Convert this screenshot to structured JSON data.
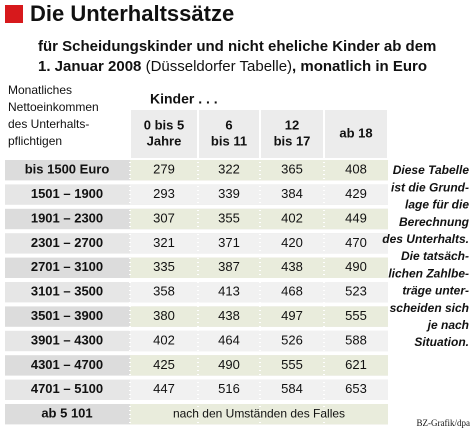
{
  "header": {
    "title": "Die Unterhaltssätze",
    "subtitle": [
      [
        "für Scheidungskinder und nicht eheliche Kinder ab dem"
      ],
      [
        "1. Januar 2008 ",
        "(Düsseldorfer Tabelle)",
        ", monatlich in Euro"
      ]
    ]
  },
  "table": {
    "corner": [
      "Monatliches",
      "Nettoeinkommen",
      "des Unterhalts-",
      "pflichtigen"
    ],
    "group_header": "Kinder . . .",
    "columns": [
      [
        "0 bis 5",
        "Jahre"
      ],
      [
        "6",
        "bis 11"
      ],
      [
        "12",
        "bis 17"
      ],
      [
        "ab 18"
      ]
    ],
    "rows": [
      [
        "bis 1500 Euro",
        "279",
        "322",
        "365",
        "408"
      ],
      [
        "1501 – 1900",
        "293",
        "339",
        "384",
        "429"
      ],
      [
        "1901 – 2300",
        "307",
        "355",
        "402",
        "449"
      ],
      [
        "2301 – 2700",
        "321",
        "371",
        "420",
        "470"
      ],
      [
        "2701 – 3100",
        "335",
        "387",
        "438",
        "490"
      ],
      [
        "3101 – 3500",
        "358",
        "413",
        "468",
        "523"
      ],
      [
        "3501 – 3900",
        "380",
        "438",
        "497",
        "555"
      ],
      [
        "3901 – 4300",
        "402",
        "464",
        "526",
        "588"
      ],
      [
        "4301 – 4700",
        "425",
        "490",
        "555",
        "621"
      ],
      [
        "4701 – 5100",
        "447",
        "516",
        "584",
        "653"
      ]
    ],
    "last_row": [
      "ab 5 101",
      "nach den Umständen des Falles"
    ]
  },
  "side_note": [
    "Diese Tabelle",
    "ist die Grund-",
    "lage für die",
    "Berechnung",
    "des Unterhalts.",
    "Die tatsäch-",
    "lichen Zahlbe-",
    "träge unter-",
    "scheiden sich",
    "je nach",
    "Situation."
  ],
  "source": "BZ-Grafik/dpa"
}
